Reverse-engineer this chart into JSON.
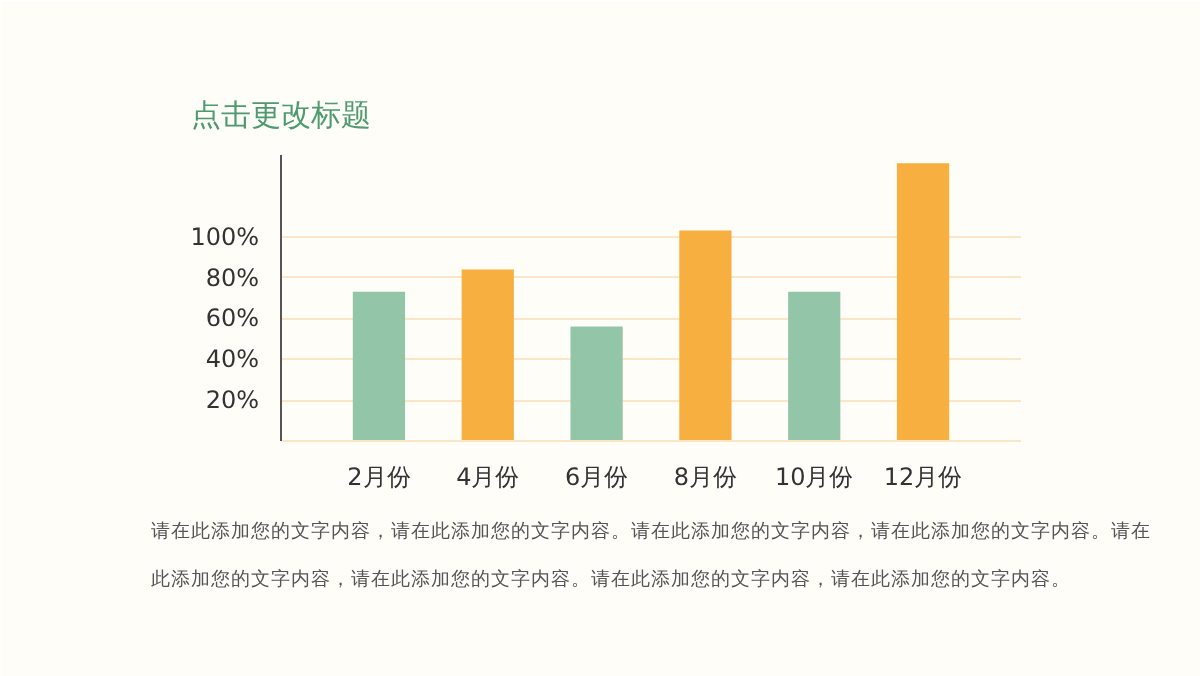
{
  "chart_data": {
    "type": "bar",
    "title": "点击更改标题",
    "categories": [
      "2月份",
      "4月份",
      "6月份",
      "8月份",
      "10月份",
      "12月份"
    ],
    "values": [
      73,
      84,
      56,
      103,
      73,
      136
    ],
    "colors": [
      "#93c5a8",
      "#f7b040",
      "#93c5a8",
      "#f7b040",
      "#93c5a8",
      "#f7b040"
    ],
    "ylim": [
      0,
      140
    ],
    "yticks": [
      {
        "value": 20,
        "label": "20%"
      },
      {
        "value": 40,
        "label": "40%"
      },
      {
        "value": 60,
        "label": "60%"
      },
      {
        "value": 80,
        "label": "80%"
      },
      {
        "value": 100,
        "label": "100%"
      }
    ],
    "grid": "y",
    "annotations": [
      "请在此添加您的文字内容，请在此添加您的文字内容。请在此添加您的文字内容，请在此添加您的文字内容。请在此添加您的文字内容，请在此添加您的文字内容。请在此添加您的文字内容，请在此添加您的文字内容。"
    ]
  }
}
